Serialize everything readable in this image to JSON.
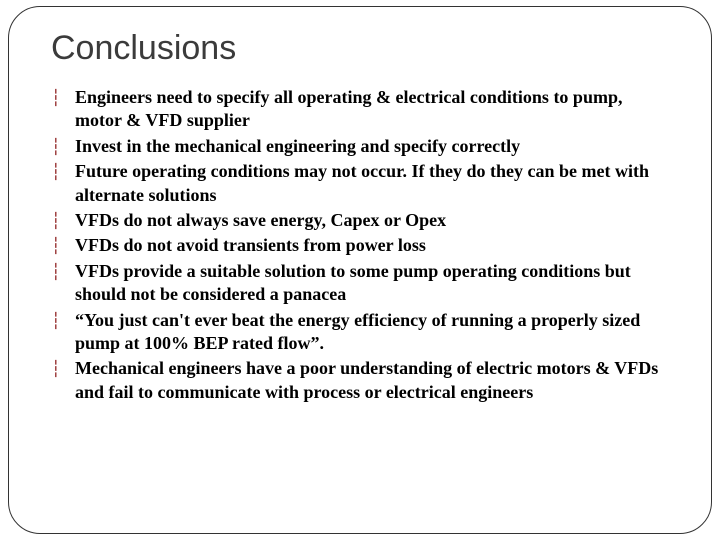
{
  "slide": {
    "title": "Conclusions",
    "title_fontsize": 34,
    "title_color": "#3b3b3b",
    "border_color": "#333333",
    "border_radius": 32,
    "background_color": "#ffffff",
    "bullet_glyph": "┆",
    "bullet_color": "#8a1818",
    "bullet_fontsize": 16,
    "body_fontsize": 18,
    "body_lineheight": 1.3,
    "body_color": "#000000",
    "items": [
      "Engineers need to specify all operating & electrical conditions to pump, motor & VFD supplier",
      "Invest in the mechanical engineering and specify correctly",
      "Future operating conditions may not occur. If they do they can be met with alternate solutions",
      "VFDs do not always save energy, Capex or Opex",
      "VFDs do not avoid transients from power loss",
      "VFDs provide a suitable solution to some pump operating conditions but should not be considered a panacea",
      "“You just can't ever beat the energy efficiency of running a properly sized pump at 100% BEP rated flow”.",
      "Mechanical engineers have a poor understanding of electric motors & VFDs and fail to communicate with process or electrical engineers"
    ]
  }
}
